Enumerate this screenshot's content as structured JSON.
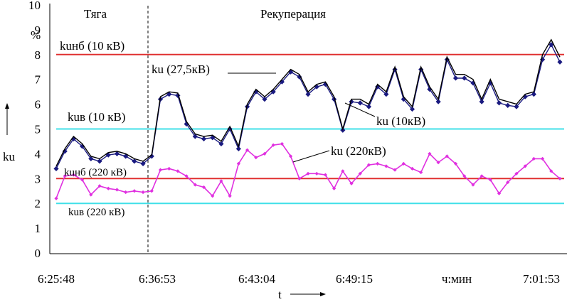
{
  "chart_data": {
    "type": "line",
    "title": "",
    "ylabel": "ku",
    "xlabel": "t",
    "yunit": "%",
    "xunit": "ч:мин",
    "ylim": [
      0,
      10
    ],
    "yticks": [
      0,
      1,
      2,
      3,
      4,
      5,
      6,
      7,
      8,
      9,
      10
    ],
    "x_tick_labels": [
      "6:25:48",
      "6:36:53",
      "6:43:04",
      "6:49:15",
      "7:01:53"
    ],
    "region_labels": [
      "Тяга",
      "Рекуперация"
    ],
    "reference_lines": [
      {
        "label": "kuнб (10 кВ)",
        "value": 8,
        "color": "#e03030"
      },
      {
        "label": "kuв (10 кВ)",
        "value": 5,
        "color": "#40e0e8"
      },
      {
        "label": "kuнб (220 кВ)",
        "value": 3,
        "color": "#e03030"
      },
      {
        "label": "kuв (220 кВ)",
        "value": 2,
        "color": "#40e0e8"
      }
    ],
    "series": [
      {
        "name": "ku (27,5кВ)",
        "color": "#000000",
        "values": [
          3.5,
          4.2,
          4.7,
          4.4,
          3.9,
          3.8,
          4.05,
          4.1,
          4.0,
          3.8,
          3.7,
          3.95,
          6.3,
          6.5,
          6.45,
          5.3,
          4.8,
          4.7,
          4.75,
          4.5,
          5.1,
          4.3,
          6.0,
          6.6,
          6.3,
          6.6,
          7.0,
          7.4,
          7.2,
          6.5,
          6.8,
          6.9,
          6.3,
          5.0,
          6.2,
          6.2,
          6.0,
          6.8,
          6.5,
          7.5,
          6.3,
          5.9,
          7.5,
          6.7,
          6.2,
          7.9,
          7.2,
          7.2,
          7.0,
          6.2,
          7.0,
          6.2,
          6.1,
          6.0,
          6.4,
          6.5,
          8.0,
          8.6,
          7.9
        ]
      },
      {
        "name": "ku (10кВ)",
        "color": "#1a1a80",
        "values": [
          3.4,
          4.1,
          4.6,
          4.3,
          3.8,
          3.7,
          3.95,
          4.0,
          3.9,
          3.7,
          3.6,
          3.9,
          6.2,
          6.4,
          6.35,
          5.2,
          4.7,
          4.6,
          4.65,
          4.4,
          5.0,
          4.2,
          5.9,
          6.5,
          6.2,
          6.5,
          6.9,
          7.3,
          7.1,
          6.4,
          6.7,
          6.8,
          6.2,
          4.95,
          6.1,
          6.05,
          5.9,
          6.7,
          6.4,
          7.4,
          6.2,
          5.8,
          7.4,
          6.6,
          6.1,
          7.8,
          7.05,
          7.05,
          6.85,
          6.1,
          6.85,
          6.05,
          5.95,
          5.9,
          6.3,
          6.4,
          7.8,
          8.4,
          7.7
        ]
      },
      {
        "name": "ku (220кВ)",
        "color": "#e030e0",
        "values": [
          2.2,
          3.1,
          3.15,
          2.95,
          2.35,
          2.7,
          2.6,
          2.55,
          2.45,
          2.5,
          2.45,
          2.5,
          3.35,
          3.4,
          3.3,
          3.1,
          2.75,
          2.65,
          2.3,
          2.9,
          2.3,
          3.6,
          4.15,
          3.85,
          4.0,
          4.35,
          4.4,
          3.9,
          3.0,
          3.2,
          3.2,
          3.15,
          2.6,
          3.3,
          2.8,
          3.2,
          3.55,
          3.6,
          3.5,
          3.35,
          3.6,
          3.4,
          3.25,
          4.0,
          3.65,
          3.9,
          3.6,
          3.1,
          2.75,
          3.1,
          2.95,
          2.4,
          2.85,
          3.2,
          3.5,
          3.8,
          3.8,
          3.3,
          3.0
        ]
      }
    ],
    "annotations": {
      "kunb10": "kuнб (10 кВ)",
      "kuv10": "kuв (10 кВ)",
      "kunb220": "kuнб (220 кВ)",
      "kuv220": "kuв (220 кВ)",
      "s275": "ku (27,5кВ)",
      "s10": "ku (10кВ)",
      "s220": "ku (220кВ)"
    }
  }
}
